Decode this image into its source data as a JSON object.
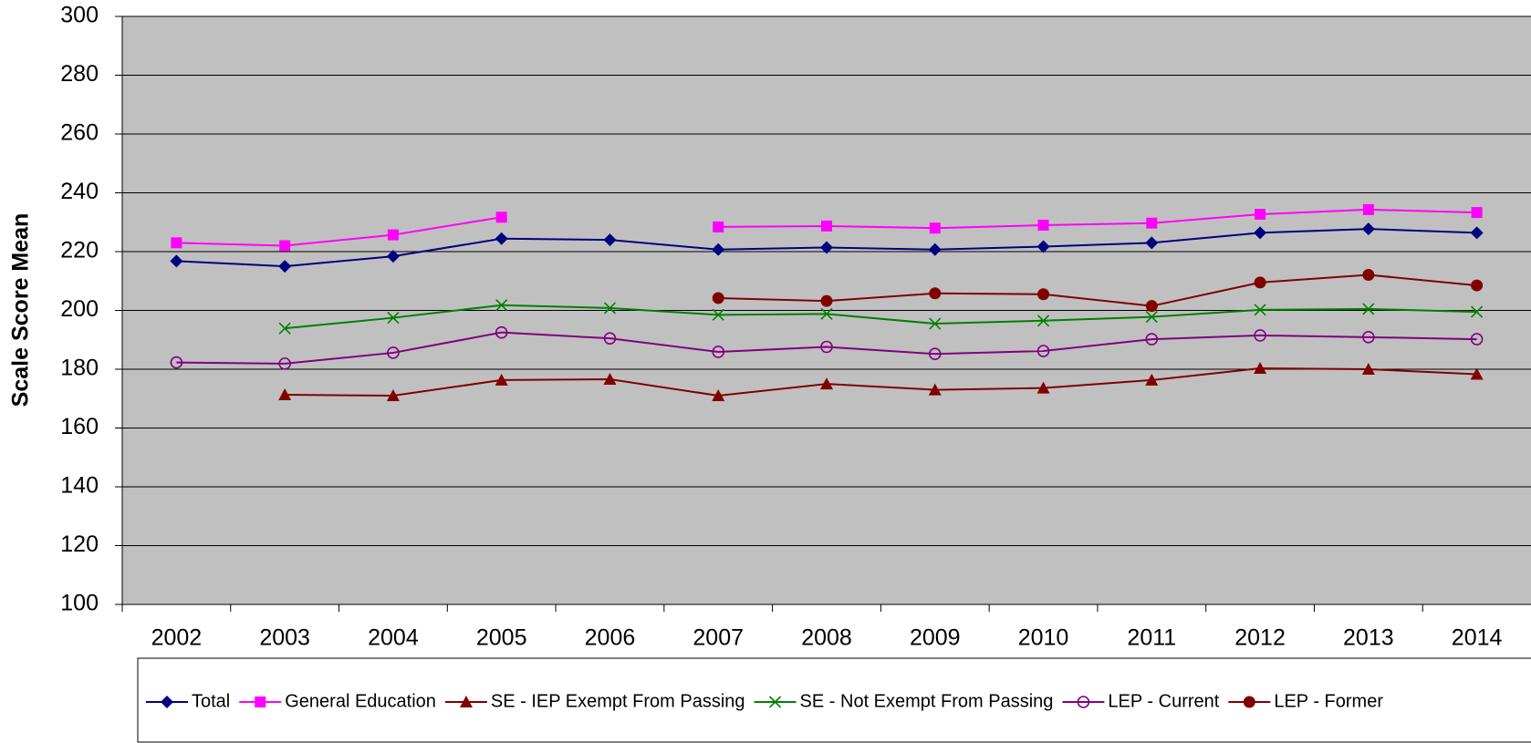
{
  "chart_data": {
    "type": "line",
    "y_label": "Scale Score Mean",
    "categories": [
      "2002",
      "2003",
      "2004",
      "2005",
      "2006",
      "2007",
      "2008",
      "2009",
      "2010",
      "2011",
      "2012",
      "2013",
      "2014"
    ],
    "ylim": [
      100,
      300
    ],
    "yticks": [
      100,
      120,
      140,
      160,
      180,
      200,
      220,
      240,
      260,
      280,
      300
    ],
    "grid": true,
    "series": [
      {
        "name": "Total",
        "color": "#000080",
        "marker": "diamond",
        "values": [
          216.8,
          215,
          218.4,
          224.4,
          224,
          220.7,
          221.4,
          220.7,
          221.7,
          223,
          226.4,
          227.7,
          226.4
        ]
      },
      {
        "name": "General Education",
        "color": "#ff00ff",
        "marker": "square",
        "values": [
          223,
          222,
          225.7,
          231.7,
          null,
          228.4,
          228.7,
          228,
          229,
          229.7,
          232.7,
          234.3,
          233.3
        ]
      },
      {
        "name": "SE - IEP Exempt From Passing",
        "color": "#800000",
        "marker": "triangle",
        "values": [
          null,
          171.3,
          171,
          176.3,
          176.6,
          171,
          175,
          173,
          173.6,
          176.3,
          180.3,
          180,
          178.3
        ]
      },
      {
        "name": "SE - Not Exempt From Passing",
        "color": "#008000",
        "marker": "x",
        "values": [
          null,
          193.9,
          197.5,
          201.8,
          200.8,
          198.5,
          198.8,
          195.5,
          196.5,
          197.8,
          200.2,
          200.5,
          199.5
        ]
      },
      {
        "name": "LEP - Current",
        "color": "#800080",
        "marker": "open-circle",
        "values": [
          182.3,
          181.9,
          185.6,
          192.5,
          190.5,
          185.9,
          187.6,
          185.2,
          186.2,
          190.2,
          191.5,
          190.9,
          190.2
        ]
      },
      {
        "name": "LEP - Former",
        "color": "#800000",
        "marker": "circle",
        "values": [
          null,
          null,
          null,
          null,
          null,
          204.2,
          203.2,
          205.8,
          205.5,
          201.5,
          209.5,
          212.1,
          208.5
        ]
      }
    ]
  }
}
